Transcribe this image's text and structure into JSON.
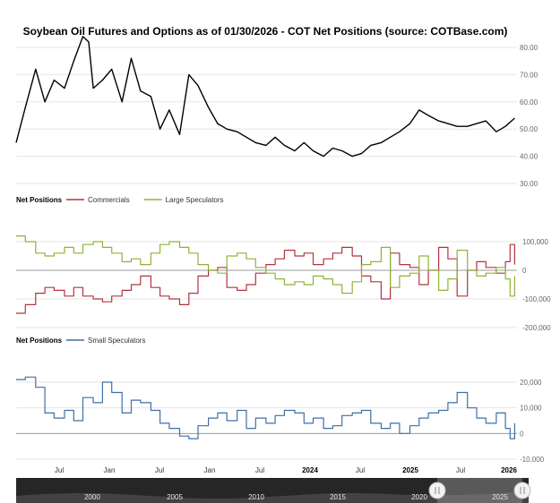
{
  "title": "Soybean Oil Futures and Options as of 01/30/2026 - COT Net Positions (source: COTBase.com)",
  "colors": {
    "price": "#000000",
    "commercials": "#b5323f",
    "large_speculators": "#8fb339",
    "small_speculators": "#3f6fa6",
    "grid": "#e6e6e6",
    "zero_line": "#999999",
    "navigator_bg": "#262626"
  },
  "x_axis": {
    "labels": [
      "Jul",
      "Jan",
      "Jul",
      "Jan",
      "Jul",
      "2024",
      "Jul",
      "2025",
      "Jul",
      "2026"
    ],
    "bold_labels": [
      "2024",
      "2025",
      "2026"
    ]
  },
  "navigator": {
    "labels": [
      "2000",
      "2005",
      "2010",
      "2015",
      "2020",
      "2025"
    ],
    "handle_icons": [
      "drag-handle-icon",
      "drag-handle-icon"
    ]
  },
  "chart_data": [
    {
      "type": "line",
      "title": "Soybean Oil Futures and Options as of 01/30/2026 - COT Net Positions (source: COTBase.com)",
      "yticks": [
        "80.00",
        "70.00",
        "60.00",
        "50.00",
        "40.00",
        "30.00"
      ],
      "ylim": [
        30,
        80
      ],
      "x_range": [
        2021.75,
        2026.1
      ],
      "series": [
        {
          "x": [
            2021.75,
            2021.83,
            2021.92,
            2022.0,
            2022.08,
            2022.17,
            2022.25,
            2022.33,
            2022.38,
            2022.42,
            2022.5,
            2022.58,
            2022.67,
            2022.75,
            2022.83,
            2022.92,
            2023.0,
            2023.08,
            2023.17,
            2023.25,
            2023.33,
            2023.42,
            2023.5,
            2023.58,
            2023.67,
            2023.75,
            2023.83,
            2023.92,
            2024.0,
            2024.08,
            2024.17,
            2024.25,
            2024.33,
            2024.42,
            2024.5,
            2024.58,
            2024.67,
            2024.75,
            2024.83,
            2024.92,
            2025.0,
            2025.08,
            2025.17,
            2025.25,
            2025.33,
            2025.42,
            2025.5,
            2025.58,
            2025.67,
            2025.75,
            2025.83,
            2025.92,
            2026.0,
            2026.08
          ],
          "values": [
            45,
            58,
            72,
            60,
            68,
            65,
            75,
            84,
            82,
            65,
            68,
            72,
            60,
            76,
            64,
            62,
            50,
            57,
            48,
            70,
            66,
            58,
            52,
            50,
            49,
            47,
            45,
            44,
            47,
            44,
            42,
            45,
            42,
            40,
            43,
            42,
            40,
            41,
            44,
            45,
            47,
            49,
            52,
            57,
            55,
            53,
            52,
            51,
            51,
            52,
            53,
            49,
            51,
            54
          ]
        }
      ]
    },
    {
      "type": "line",
      "legend_title": "Net Positions",
      "yticks": [
        "100,000",
        "0",
        "-100,000",
        "-200,000"
      ],
      "ylim": [
        -200000,
        100000
      ],
      "x_range": [
        2021.75,
        2026.1
      ],
      "series": [
        {
          "name": "Commercials",
          "x": [
            2021.75,
            2021.83,
            2021.92,
            2022.0,
            2022.08,
            2022.17,
            2022.25,
            2022.33,
            2022.42,
            2022.5,
            2022.58,
            2022.67,
            2022.75,
            2022.83,
            2022.92,
            2023.0,
            2023.08,
            2023.17,
            2023.25,
            2023.33,
            2023.42,
            2023.5,
            2023.58,
            2023.67,
            2023.75,
            2023.83,
            2023.92,
            2024.0,
            2024.08,
            2024.17,
            2024.25,
            2024.33,
            2024.42,
            2024.5,
            2024.58,
            2024.67,
            2024.75,
            2024.83,
            2024.92,
            2025.0,
            2025.08,
            2025.17,
            2025.25,
            2025.33,
            2025.42,
            2025.5,
            2025.58,
            2025.67,
            2025.75,
            2025.83,
            2025.92,
            2026.0,
            2026.04,
            2026.08
          ],
          "values": [
            -150000,
            -120000,
            -80000,
            -60000,
            -70000,
            -90000,
            -60000,
            -90000,
            -100000,
            -110000,
            -90000,
            -70000,
            -50000,
            -20000,
            -60000,
            -90000,
            -100000,
            -120000,
            -80000,
            -20000,
            0,
            10000,
            -60000,
            -70000,
            -50000,
            -10000,
            20000,
            40000,
            70000,
            50000,
            60000,
            20000,
            40000,
            60000,
            80000,
            50000,
            -20000,
            -40000,
            -100000,
            60000,
            20000,
            10000,
            -50000,
            0,
            80000,
            40000,
            -90000,
            0,
            30000,
            10000,
            -10000,
            30000,
            90000,
            20000
          ]
        },
        {
          "name": "Large Speculators",
          "x": [
            2021.75,
            2021.83,
            2021.92,
            2022.0,
            2022.08,
            2022.17,
            2022.25,
            2022.33,
            2022.42,
            2022.5,
            2022.58,
            2022.67,
            2022.75,
            2022.83,
            2022.92,
            2023.0,
            2023.08,
            2023.17,
            2023.25,
            2023.33,
            2023.42,
            2023.5,
            2023.58,
            2023.67,
            2023.75,
            2023.83,
            2023.92,
            2024.0,
            2024.08,
            2024.17,
            2024.25,
            2024.33,
            2024.42,
            2024.5,
            2024.58,
            2024.67,
            2024.75,
            2024.83,
            2024.92,
            2025.0,
            2025.08,
            2025.17,
            2025.25,
            2025.33,
            2025.42,
            2025.5,
            2025.58,
            2025.67,
            2025.75,
            2025.83,
            2025.92,
            2026.0,
            2026.04,
            2026.08
          ],
          "values": [
            120000,
            100000,
            60000,
            50000,
            60000,
            80000,
            60000,
            90000,
            100000,
            80000,
            60000,
            30000,
            40000,
            20000,
            60000,
            90000,
            100000,
            80000,
            60000,
            20000,
            0,
            -10000,
            50000,
            60000,
            40000,
            10000,
            -10000,
            -30000,
            -50000,
            -40000,
            -50000,
            -20000,
            -30000,
            -50000,
            -80000,
            -40000,
            20000,
            30000,
            80000,
            -60000,
            -20000,
            -10000,
            50000,
            0,
            -70000,
            -30000,
            70000,
            0,
            -20000,
            -10000,
            10000,
            -30000,
            -90000,
            -20000
          ]
        }
      ]
    },
    {
      "type": "line",
      "legend_title": "Net Positions",
      "yticks": [
        "20,000",
        "10,000",
        "0",
        "-10,000"
      ],
      "ylim": [
        -10000,
        20000
      ],
      "x_range": [
        2021.75,
        2026.1
      ],
      "series": [
        {
          "name": "Small Speculators",
          "x": [
            2021.75,
            2021.83,
            2021.92,
            2022.0,
            2022.08,
            2022.17,
            2022.25,
            2022.33,
            2022.42,
            2022.5,
            2022.58,
            2022.67,
            2022.75,
            2022.83,
            2022.92,
            2023.0,
            2023.08,
            2023.17,
            2023.25,
            2023.33,
            2023.42,
            2023.5,
            2023.58,
            2023.67,
            2023.75,
            2023.83,
            2023.92,
            2024.0,
            2024.08,
            2024.17,
            2024.25,
            2024.33,
            2024.42,
            2024.5,
            2024.58,
            2024.67,
            2024.75,
            2024.83,
            2024.92,
            2025.0,
            2025.08,
            2025.17,
            2025.25,
            2025.33,
            2025.42,
            2025.5,
            2025.58,
            2025.67,
            2025.75,
            2025.83,
            2025.92,
            2026.0,
            2026.04,
            2026.08
          ],
          "values": [
            21000,
            22000,
            18000,
            8000,
            6000,
            9000,
            5000,
            14000,
            12000,
            20000,
            16000,
            8000,
            13000,
            12000,
            9000,
            4000,
            2000,
            -1000,
            -2000,
            3000,
            6000,
            8000,
            5000,
            9000,
            2000,
            6000,
            4000,
            7000,
            9000,
            8000,
            4000,
            6000,
            2000,
            3000,
            7000,
            8000,
            9000,
            4000,
            2000,
            4000,
            0,
            3000,
            6000,
            8000,
            9000,
            12000,
            16000,
            10000,
            6000,
            4000,
            8000,
            2000,
            -2000,
            4000
          ]
        }
      ]
    }
  ]
}
